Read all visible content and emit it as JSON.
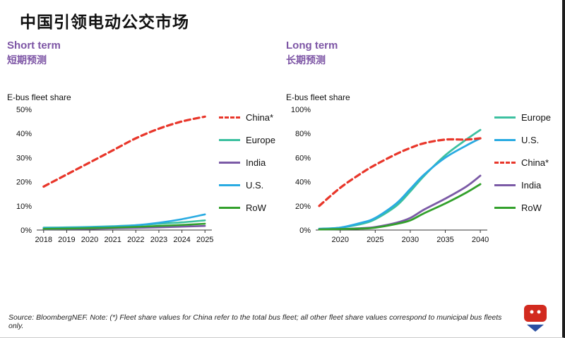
{
  "page": {
    "title": "中国引领电动公交市场",
    "source_note": "Source: BloombergNEF. Note: (*) Fleet share values for China refer to the total bus fleet; all other fleet share values correspond to municipal bus fleets only."
  },
  "colors": {
    "china": "#e8362a",
    "europe": "#3cc0a0",
    "india": "#7b5aa6",
    "us": "#29abe2",
    "row": "#33a02c",
    "heading_purple": "#7d55a5"
  },
  "icons": {
    "bottom_right": "brand-logo"
  },
  "chart_data": [
    {
      "type": "line",
      "heading_en": "Short term",
      "heading_zh": "短期预测",
      "axis_label": "E-bus fleet share",
      "xlim": [
        2017.7,
        2025.3
      ],
      "ylim": [
        0,
        50
      ],
      "yticks": [
        0,
        10,
        20,
        30,
        40,
        50
      ],
      "xticks": [
        2018,
        2019,
        2020,
        2021,
        2022,
        2023,
        2024,
        2025
      ],
      "x": [
        2018,
        2019,
        2020,
        2021,
        2022,
        2023,
        2024,
        2025
      ],
      "series": [
        {
          "name": "China*",
          "color": "#e8362a",
          "dashed": true,
          "width": 3.2,
          "values": [
            18,
            23,
            28,
            33,
            38,
            42,
            45,
            47
          ]
        },
        {
          "name": "Europe",
          "color": "#3cc0a0",
          "dashed": false,
          "width": 2.6,
          "values": [
            1,
            1.1,
            1.3,
            1.6,
            2,
            2.6,
            3.2,
            4
          ]
        },
        {
          "name": "India",
          "color": "#7b5aa6",
          "dashed": false,
          "width": 2.6,
          "values": [
            0.3,
            0.4,
            0.5,
            0.7,
            0.9,
            1.1,
            1.4,
            1.7
          ]
        },
        {
          "name": "U.S.",
          "color": "#29abe2",
          "dashed": false,
          "width": 2.6,
          "values": [
            0.8,
            0.9,
            1.1,
            1.4,
            2,
            3,
            4.5,
            6.5
          ]
        },
        {
          "name": "RoW",
          "color": "#33a02c",
          "dashed": false,
          "width": 2.6,
          "values": [
            0.5,
            0.6,
            0.8,
            1,
            1.3,
            1.7,
            2.1,
            2.6
          ]
        }
      ],
      "legend": [
        "China*",
        "Europe",
        "India",
        "U.S.",
        "RoW"
      ]
    },
    {
      "type": "line",
      "heading_en": "Long term",
      "heading_zh": "长期预测",
      "axis_label": "E-bus fleet share",
      "xlim": [
        2016.5,
        2041
      ],
      "ylim": [
        0,
        100
      ],
      "yticks": [
        0,
        20,
        40,
        60,
        80,
        100
      ],
      "xticks": [
        2020,
        2025,
        2030,
        2035,
        2040
      ],
      "x": [
        2017,
        2020,
        2023,
        2025,
        2028,
        2030,
        2032,
        2035,
        2038,
        2040
      ],
      "series": [
        {
          "name": "Europe",
          "color": "#3cc0a0",
          "dashed": false,
          "width": 2.8,
          "values": [
            1,
            2,
            5,
            9,
            20,
            32,
            45,
            62,
            75,
            83
          ]
        },
        {
          "name": "U.S.",
          "color": "#29abe2",
          "dashed": false,
          "width": 2.8,
          "values": [
            1,
            2,
            6,
            10,
            22,
            34,
            46,
            60,
            70,
            76
          ]
        },
        {
          "name": "China*",
          "color": "#e8362a",
          "dashed": true,
          "width": 3.2,
          "values": [
            20,
            35,
            47,
            54,
            63,
            68,
            72,
            75,
            75,
            76
          ]
        },
        {
          "name": "India",
          "color": "#7b5aa6",
          "dashed": false,
          "width": 2.8,
          "values": [
            0.5,
            0.8,
            1.5,
            2.5,
            6,
            10,
            17,
            26,
            36,
            45
          ]
        },
        {
          "name": "RoW",
          "color": "#33a02c",
          "dashed": false,
          "width": 2.8,
          "values": [
            0.5,
            0.8,
            1.2,
            2,
            5,
            8,
            14,
            22,
            31,
            38
          ]
        }
      ],
      "legend": [
        "Europe",
        "U.S.",
        "China*",
        "India",
        "RoW"
      ]
    }
  ]
}
